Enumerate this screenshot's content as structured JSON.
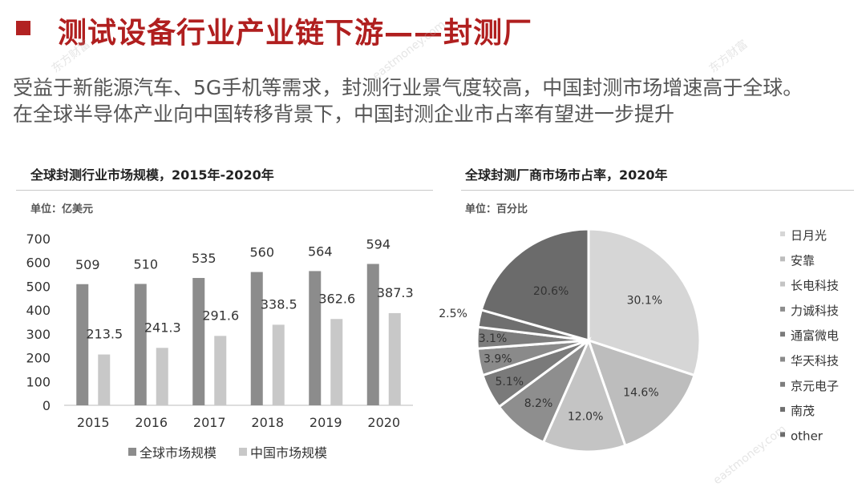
{
  "header": {
    "title": "测试设备行业产业链下游——封测厂",
    "subtitle_line1": "受益于新能源汽车、5G手机等需求，封测行业景气度较高，中国封测市场增速高于全球。",
    "subtitle_line2": "在全球半导体产业向中国转移背景下，中国封测企业市占率有望进一步提升"
  },
  "watermarks": [
    "东方财富",
    "eastmoney.com",
    "东方财富",
    "eastmoney.com"
  ],
  "colors": {
    "title": "#b01f1f",
    "global_bar": "#8c8c8c",
    "china_bar": "#c8c8c8"
  },
  "chart_data": [
    {
      "type": "bar",
      "title": "全球封测行业市场规模，2015年-2020年",
      "unit_label": "单位：亿美元",
      "categories": [
        "2015",
        "2016",
        "2017",
        "2018",
        "2019",
        "2020"
      ],
      "ylim": [
        0,
        700
      ],
      "yticks": [
        0,
        100,
        200,
        300,
        400,
        500,
        600,
        700
      ],
      "series": [
        {
          "name": "全球市场规模",
          "values": [
            509,
            510,
            535,
            560,
            564,
            594
          ],
          "labels": [
            "509",
            "510",
            "535",
            "560",
            "564",
            "594"
          ]
        },
        {
          "name": "中国市场规模",
          "values": [
            213.5,
            241.3,
            291.6,
            338.5,
            362.6,
            387.3
          ],
          "labels": [
            "213.5",
            "241.3",
            "291.6",
            "338.5",
            "362.6",
            "387.3"
          ]
        }
      ],
      "legend_position": "bottom",
      "grid": false
    },
    {
      "type": "pie",
      "title": "全球封测厂商市场市占率，2020年",
      "unit_label": "单位：百分比",
      "labels": [
        "日月光",
        "安靠",
        "长电科技",
        "力诚科技",
        "通富微电",
        "华天科技",
        "京元电子",
        "南茂",
        "other"
      ],
      "values": [
        30.1,
        14.6,
        12.0,
        8.2,
        5.1,
        3.9,
        3.1,
        2.5,
        20.6
      ],
      "value_labels": [
        "30.1%",
        "14.6%",
        "12.0%",
        "8.2%",
        "5.1%",
        "3.9%",
        "3.1%",
        "2.5%",
        "20.6%"
      ],
      "colors": [
        "#d6d6d6",
        "#bdbdbd",
        "#c4c4c4",
        "#8e8e8e",
        "#7a7a7a",
        "#8a8a8a",
        "#7d7d7d",
        "#6f6f6f",
        "#6b6b6b"
      ],
      "legend_position": "right"
    }
  ]
}
